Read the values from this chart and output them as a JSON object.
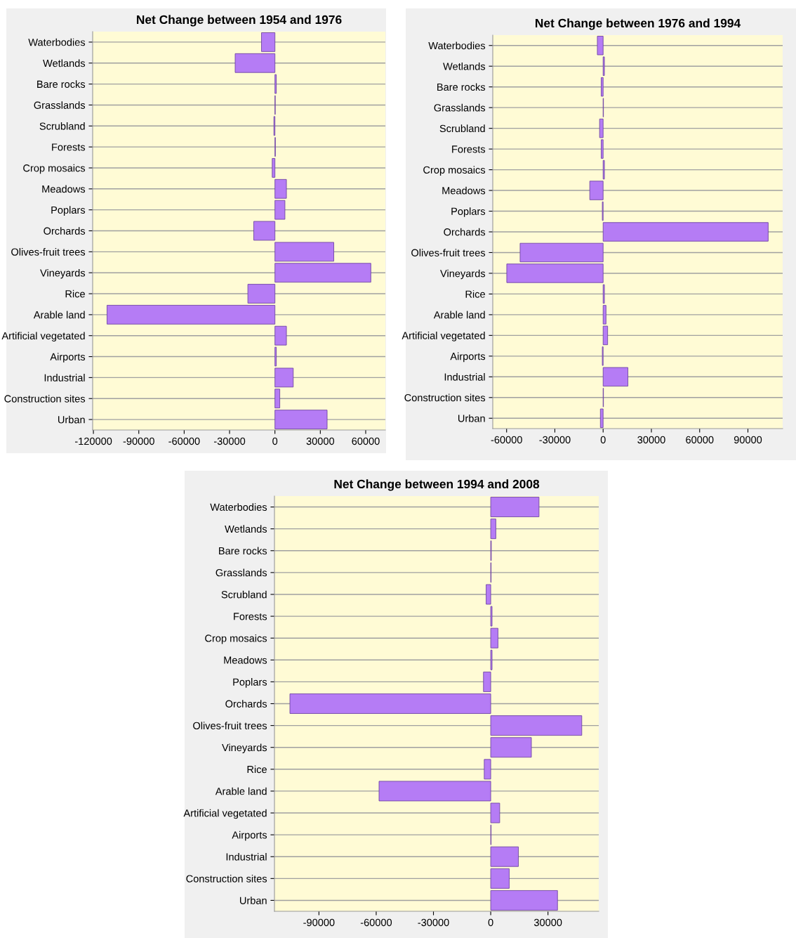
{
  "chart_data": [
    {
      "type": "bar",
      "orientation": "horizontal",
      "title": "Net Change between 1954 and 1976",
      "categories": [
        "Waterbodies",
        "Wetlands",
        "Bare rocks",
        "Grasslands",
        "Scrubland",
        "Forests",
        "Crop mosaics",
        "Meadows",
        "Poplars",
        "Orchards",
        "Olives-fruit trees",
        "Vineyards",
        "Rice",
        "Arable land",
        "Artificial vegetated",
        "Airports",
        "Industrial",
        "Construction sites",
        "Urban"
      ],
      "values": [
        -8900,
        -26300,
        900,
        200,
        -700,
        300,
        -1800,
        7600,
        6600,
        -14000,
        38900,
        63400,
        -17900,
        -111000,
        7600,
        900,
        12100,
        3200,
        34500
      ],
      "color": "#b57cf5",
      "xlim": [
        -120500,
        73000
      ],
      "xticks": [
        -120000,
        -90000,
        -60000,
        -30000,
        0,
        30000,
        60000
      ],
      "grid": "y",
      "legend": false
    },
    {
      "type": "bar",
      "orientation": "horizontal",
      "title": "Net Change between 1976 and 1994",
      "categories": [
        "Waterbodies",
        "Wetlands",
        "Bare rocks",
        "Grasslands",
        "Scrubland",
        "Forests",
        "Crop mosaics",
        "Meadows",
        "Poplars",
        "Orchards",
        "Olives-fruit trees",
        "Vineyards",
        "Rice",
        "Arable land",
        "Artificial vegetated",
        "Airports",
        "Industrial",
        "Construction sites",
        "Urban"
      ],
      "values": [
        -3600,
        800,
        -1200,
        200,
        -2200,
        -1200,
        800,
        -8300,
        -500,
        102600,
        -51600,
        -59900,
        800,
        1800,
        2800,
        -500,
        15400,
        200,
        -1700
      ],
      "color": "#b57cf5",
      "xlim": [
        -68600,
        111600
      ],
      "xticks": [
        -60000,
        -30000,
        0,
        30000,
        60000,
        90000
      ],
      "grid": "y",
      "legend": false
    },
    {
      "type": "bar",
      "orientation": "horizontal",
      "title": "Net Change between 1994 and 2008",
      "categories": [
        "Waterbodies",
        "Wetlands",
        "Bare rocks",
        "Grasslands",
        "Scrubland",
        "Forests",
        "Crop mosaics",
        "Meadows",
        "Poplars",
        "Orchards",
        "Olives-fruit trees",
        "Vineyards",
        "Rice",
        "Arable land",
        "Artificial vegetated",
        "Airports",
        "Industrial",
        "Construction sites",
        "Urban"
      ],
      "values": [
        25300,
        2700,
        300,
        200,
        -2400,
        700,
        3800,
        700,
        -3800,
        -105200,
        47700,
        21300,
        -3400,
        -58500,
        4700,
        200,
        14500,
        9700,
        35000
      ],
      "color": "#b57cf5",
      "xlim": [
        -113300,
        56600
      ],
      "xticks": [
        -90000,
        -60000,
        -30000,
        0,
        30000
      ],
      "grid": "y",
      "legend": false
    }
  ]
}
